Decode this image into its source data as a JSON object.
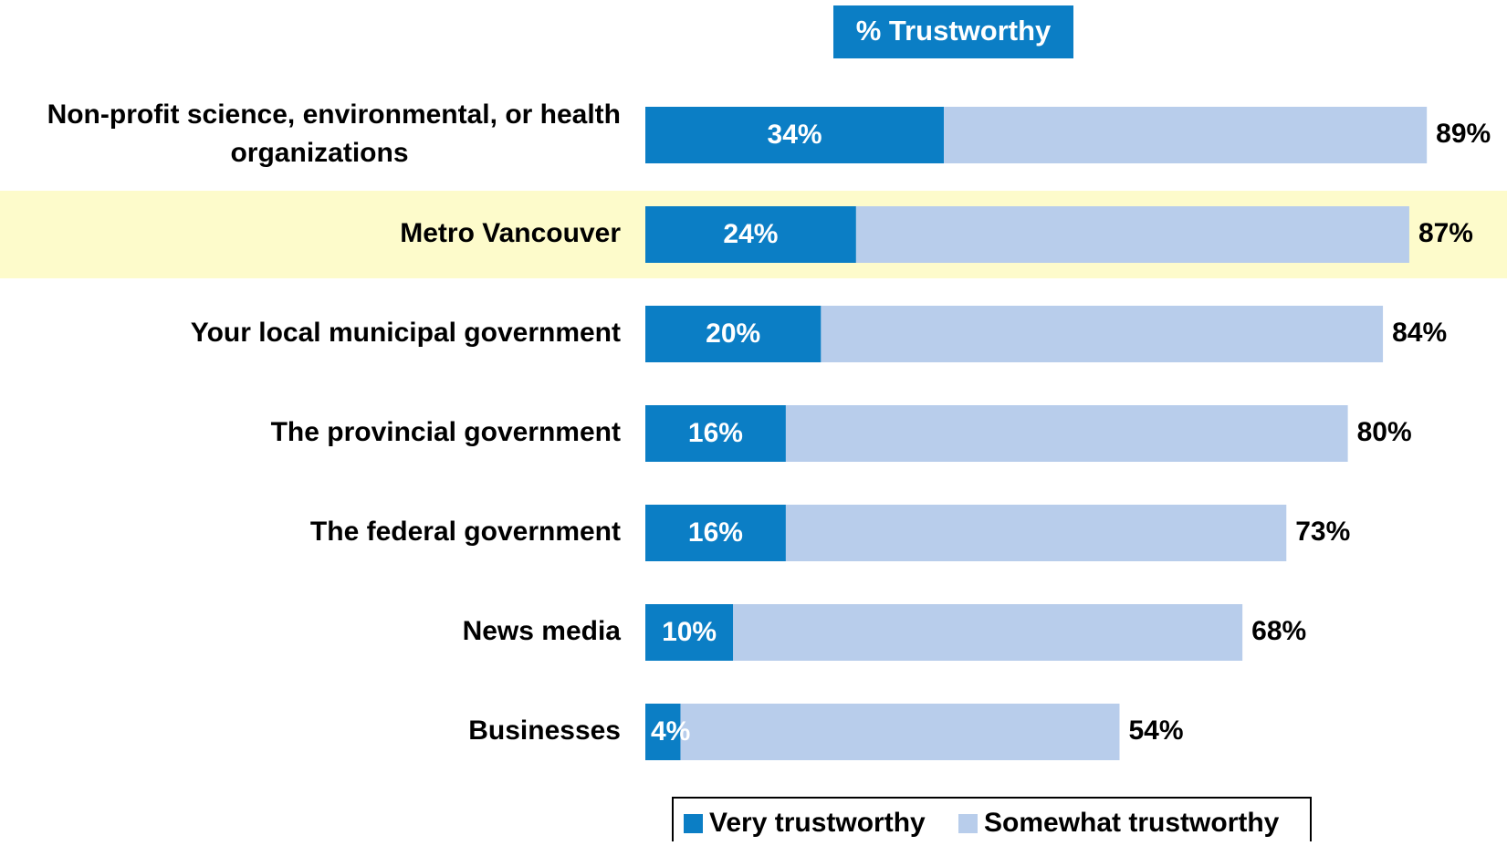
{
  "chart_data": {
    "type": "bar",
    "stacked": true,
    "orientation": "horizontal",
    "header_label": "% Trustworthy",
    "categories": [
      "Non-profit science, environmental, or health organizations",
      "Metro Vancouver",
      "Your local municipal government",
      "The provincial government",
      "The federal government",
      "News media",
      "Businesses"
    ],
    "category_lines": [
      [
        "Non-profit science, environmental, or health",
        "organizations"
      ],
      [
        "Metro Vancouver"
      ],
      [
        "Your local municipal government"
      ],
      [
        "The provincial government"
      ],
      [
        "The federal government"
      ],
      [
        "News media"
      ],
      [
        "Businesses"
      ]
    ],
    "highlighted_category": "Metro Vancouver",
    "series": [
      {
        "name": "Very trustworthy",
        "values": [
          34,
          24,
          20,
          16,
          16,
          10,
          4
        ],
        "labels": [
          "34%",
          "24%",
          "20%",
          "16%",
          "16%",
          "10%",
          "4%"
        ]
      },
      {
        "name": "Somewhat trustworthy",
        "values": [
          55,
          63,
          64,
          64,
          57,
          58,
          50
        ]
      }
    ],
    "totals": [
      89,
      87,
      84,
      80,
      73,
      68,
      54
    ],
    "total_labels": [
      "89%",
      "87%",
      "84%",
      "80%",
      "73%",
      "68%",
      "54%"
    ],
    "xlim": [
      0,
      100
    ],
    "grid": false,
    "legend_position": "bottom",
    "colors": {
      "very": "#0b7ec5",
      "somewhat": "#b8cdeb",
      "header_bg": "#0b7ec5",
      "header_text": "#ffffff",
      "highlight": "#fdfbcb",
      "text": "#000000"
    }
  }
}
